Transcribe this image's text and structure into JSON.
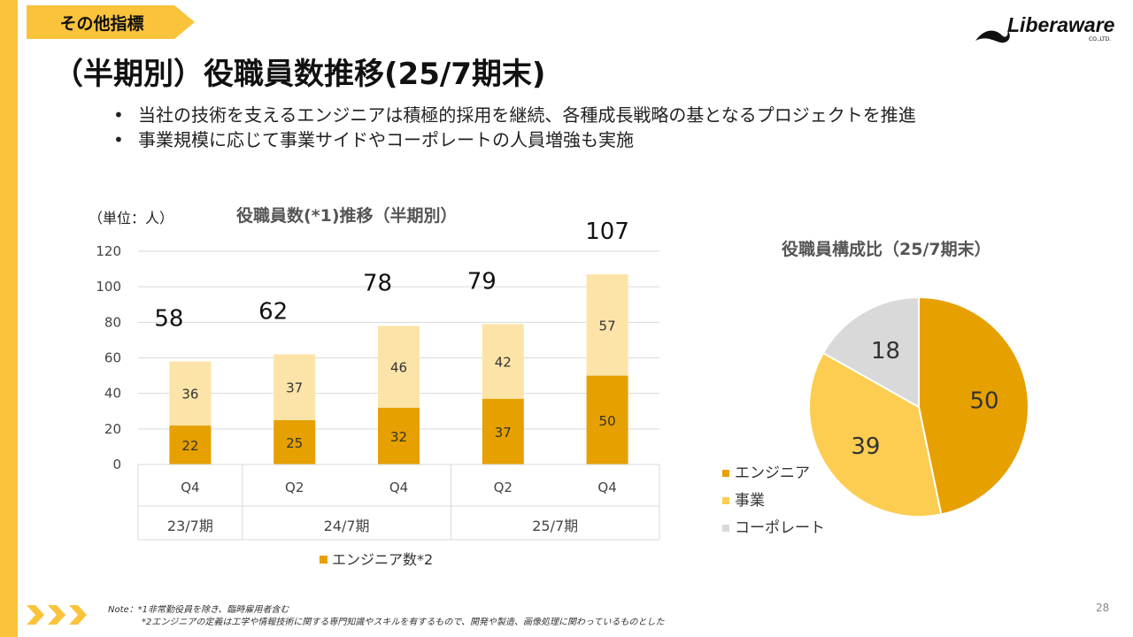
{
  "header": {
    "section_tag": "その他指標",
    "title": "（半期別）役職員数推移(25/7期末)",
    "logo_text": "Liberaware",
    "logo_sub": "CO.,LTD."
  },
  "bullets": [
    "当社の技術を支えるエンジニアは積極的採用を継続、各種成長戦略の基となるプロジェクトを推進",
    "事業規模に応じて事業サイドやコーポレートの人員増強も実施"
  ],
  "colors": {
    "accent": "#F9C33B",
    "engineer": "#E6A000",
    "other": "#FCE4A8",
    "pie_business": "#FCCD50",
    "pie_corporate": "#D9D9D9",
    "grid": "#D9D9D9"
  },
  "chart_data": [
    {
      "type": "bar",
      "title": "役職員数(*1)推移（半期別）",
      "unit_label": "（単位：人）",
      "categories": [
        "Q4",
        "Q2",
        "Q4",
        "Q2",
        "Q4"
      ],
      "groups": [
        {
          "label": "23/7期",
          "count": 1
        },
        {
          "label": "24/7期",
          "count": 2
        },
        {
          "label": "25/7期",
          "count": 2
        }
      ],
      "series": [
        {
          "name": "エンジニア数*2",
          "values": [
            22,
            25,
            32,
            37,
            50
          ]
        },
        {
          "values": [
            36,
            37,
            46,
            42,
            57
          ]
        }
      ],
      "totals": [
        58,
        62,
        78,
        79,
        107
      ],
      "ylim": [
        0,
        120
      ],
      "yticks": [
        0,
        20,
        40,
        60,
        80,
        100,
        120
      ],
      "grid": true,
      "legend": "bottom"
    },
    {
      "type": "pie",
      "title": "役職員構成比（25/7期末）",
      "labels": [
        "エンジニア",
        "事業",
        "コーポレート"
      ],
      "values": [
        50,
        39,
        18
      ],
      "legend": "bottom-left"
    }
  ],
  "footer": {
    "note_line1": "Note：*1非常勤役員を除き、臨時雇用者含む",
    "note_line2": "*2エンジニアの定義は工学や情報技術に関する専門知識やスキルを有するもので、開発や製造、画像処理に関わっているものとした",
    "page_number": "28"
  }
}
